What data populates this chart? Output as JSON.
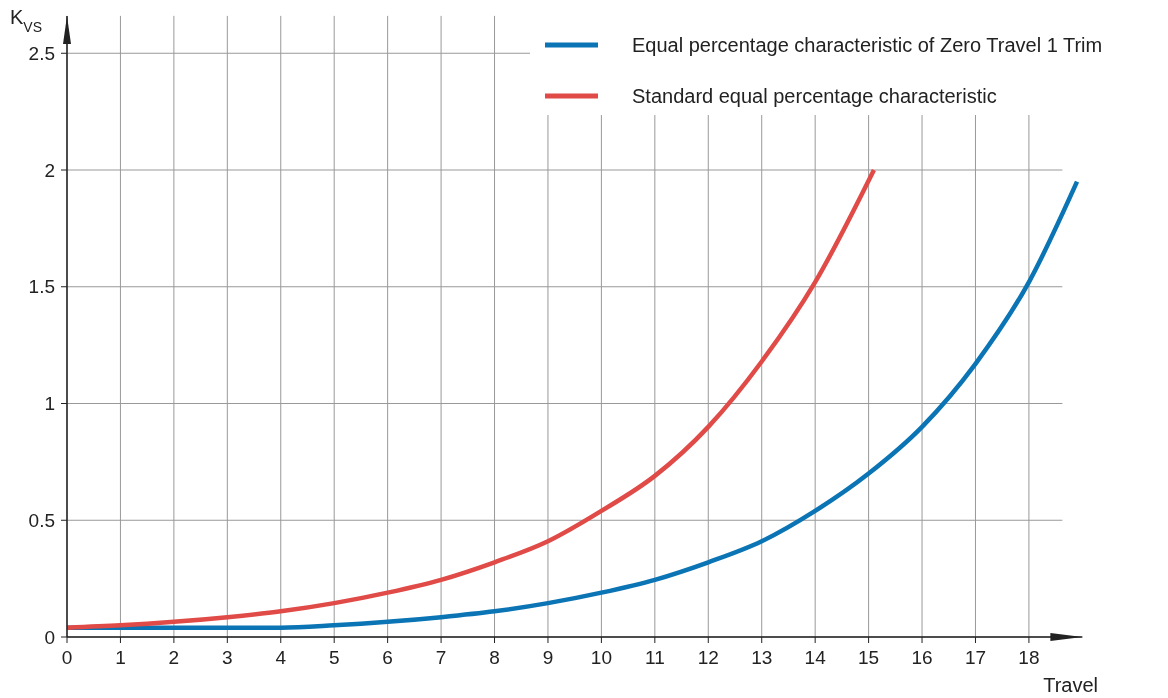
{
  "chart_data": {
    "type": "line",
    "xlabel": "Travel",
    "ylabel": "K$_{VS}$",
    "xlim": [
      0,
      19
    ],
    "ylim": [
      0,
      2.66
    ],
    "xticks": [
      0,
      1,
      2,
      3,
      4,
      5,
      6,
      7,
      8,
      9,
      10,
      11,
      12,
      13,
      14,
      15,
      16,
      17,
      18
    ],
    "yticks": [
      0,
      0.5,
      1,
      1.5,
      2,
      2.5
    ],
    "grid": true,
    "legend": "top right",
    "marker": "none",
    "line_style": "solid",
    "series": [
      {
        "name": "Equal percentage characteristic of Zero Travel 1 Trim",
        "color": "#0a74b4",
        "x": [
          0,
          1,
          2,
          3,
          4,
          5,
          6,
          7,
          8,
          9,
          10,
          11,
          12,
          13,
          14,
          15,
          16,
          17,
          18,
          18.9
        ],
        "values": [
          0.04,
          0.04,
          0.04,
          0.04,
          0.04,
          0.05,
          0.065,
          0.085,
          0.11,
          0.145,
          0.19,
          0.245,
          0.32,
          0.41,
          0.54,
          0.7,
          0.9,
          1.17,
          1.52,
          1.95
        ]
      },
      {
        "name": "Standard equal percentage characteristic",
        "color": "#e04a47",
        "x": [
          0,
          1,
          2,
          3,
          4,
          5,
          6,
          7,
          8,
          9,
          10,
          11,
          12,
          13,
          14,
          15.1
        ],
        "values": [
          0.04,
          0.05,
          0.065,
          0.085,
          0.11,
          0.145,
          0.19,
          0.245,
          0.32,
          0.41,
          0.54,
          0.69,
          0.9,
          1.18,
          1.52,
          2.0
        ]
      }
    ]
  }
}
